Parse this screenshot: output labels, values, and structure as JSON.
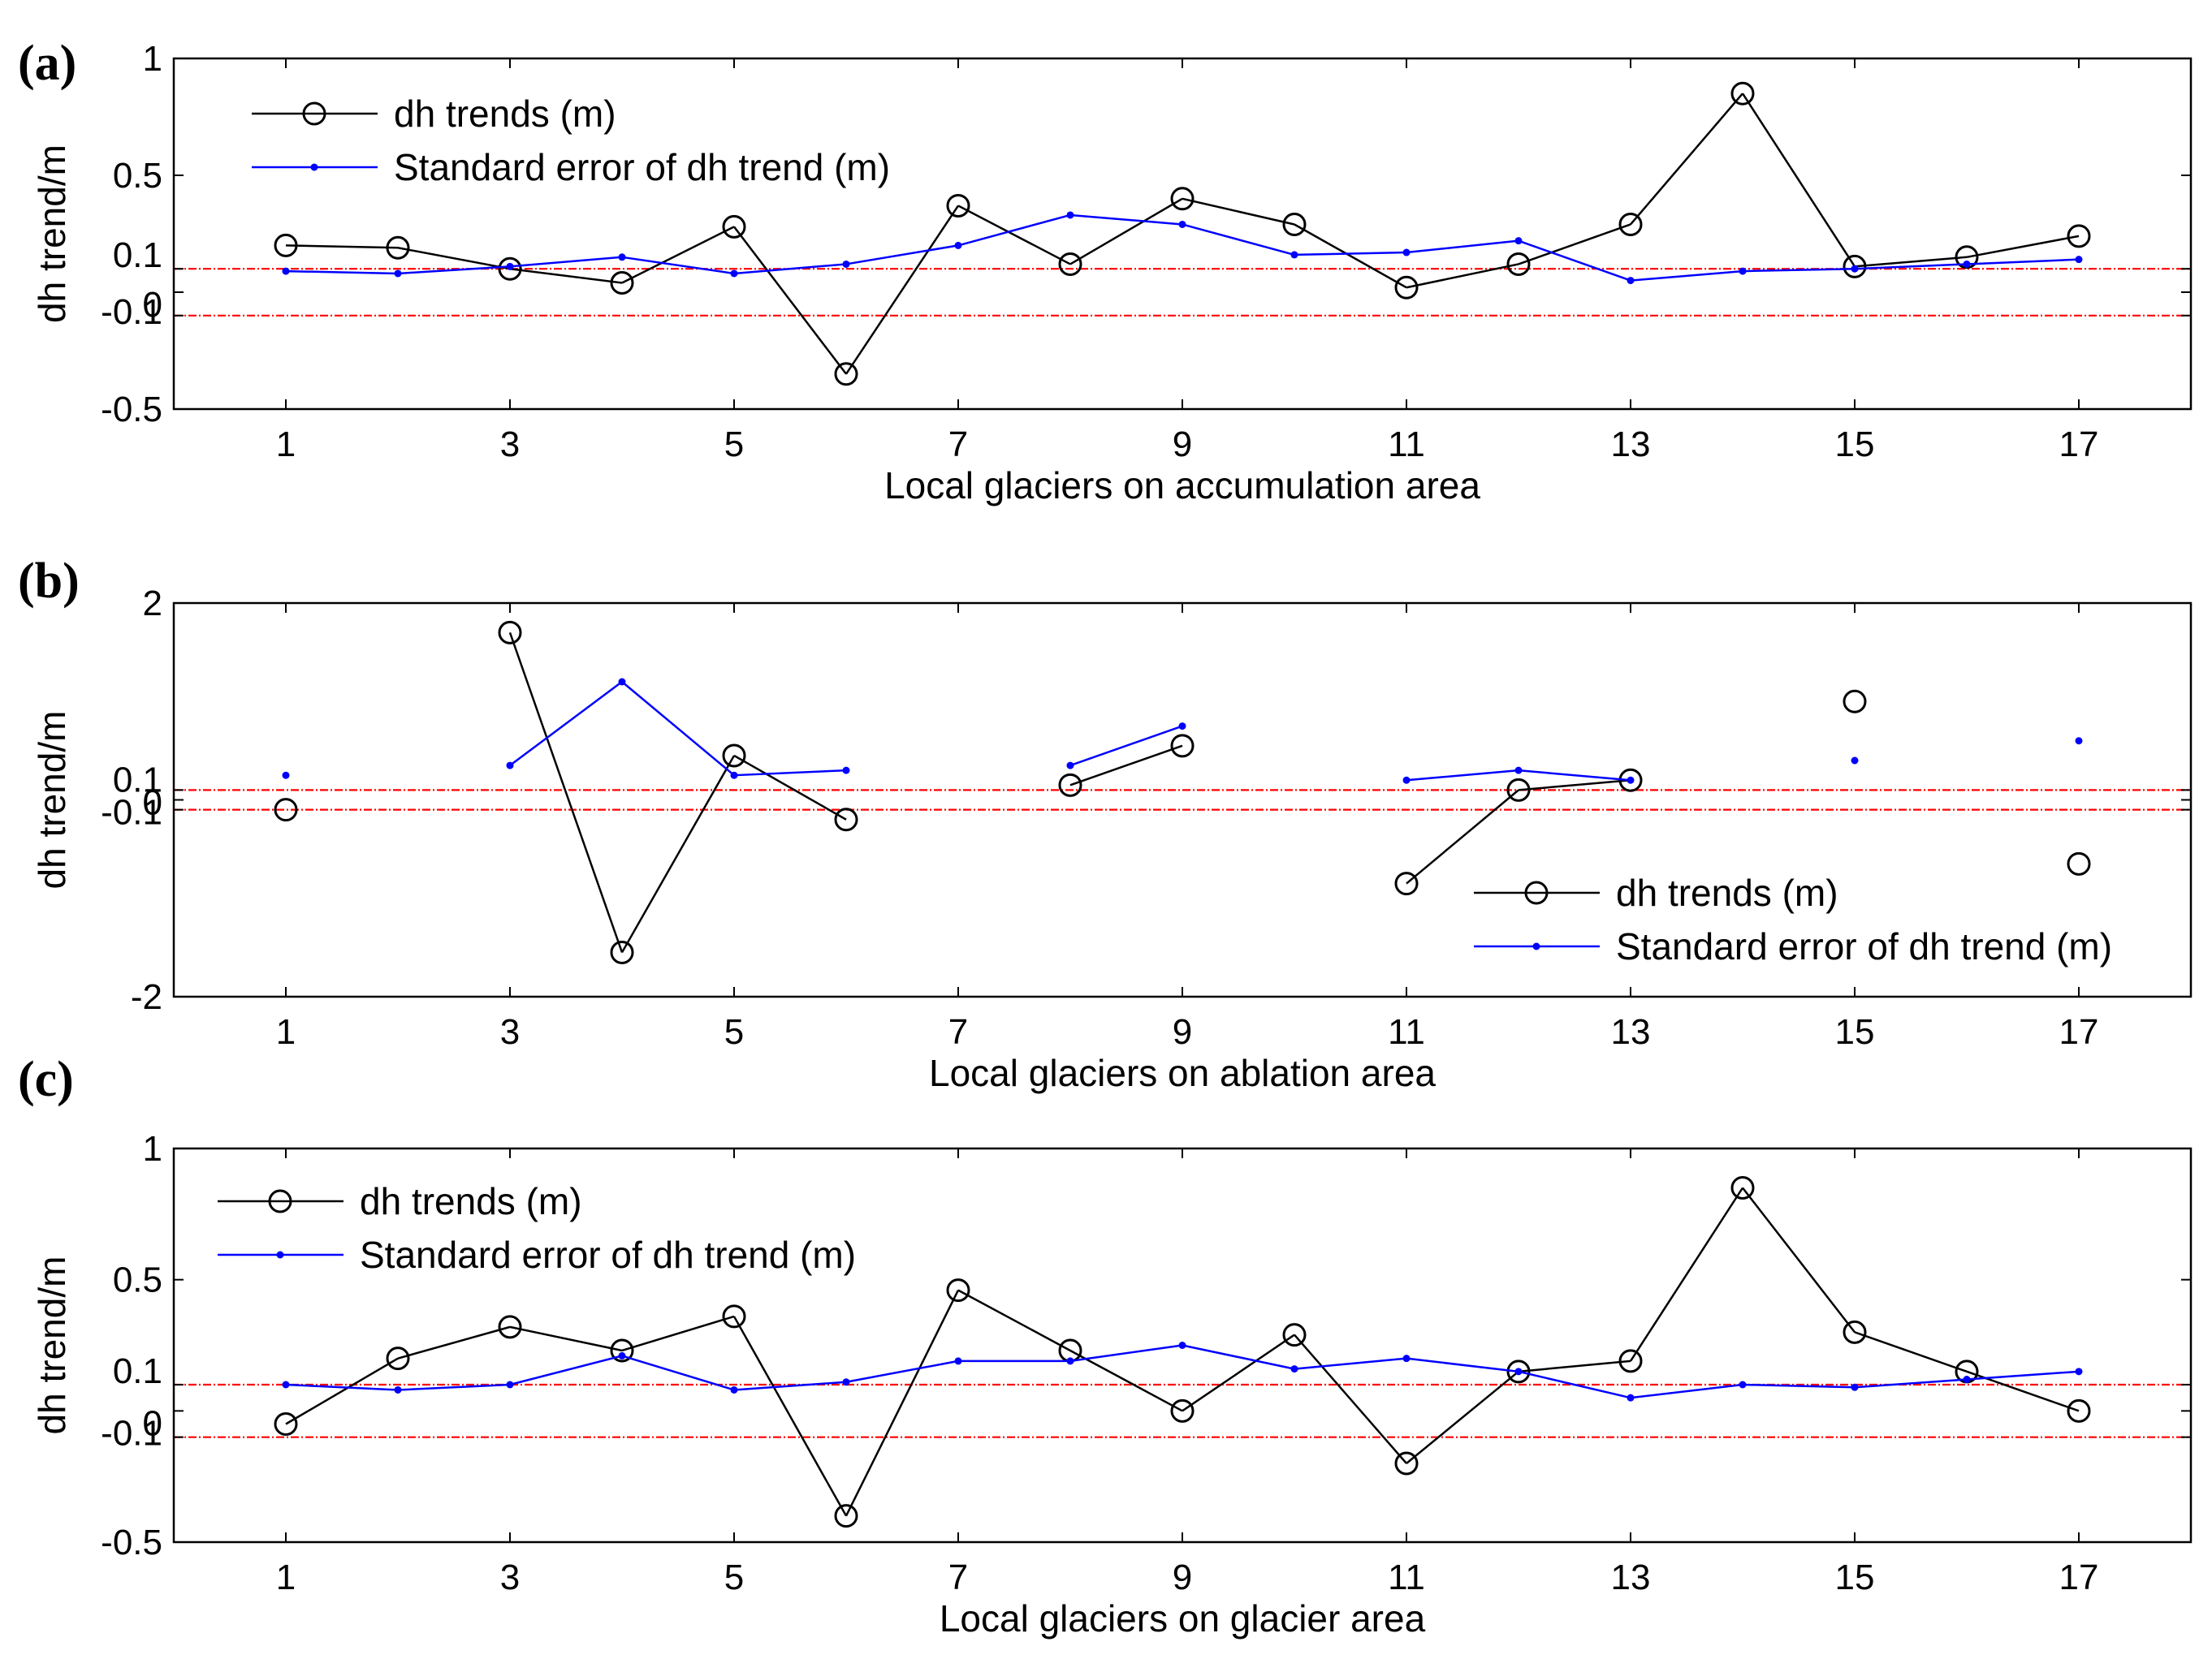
{
  "colors": {
    "dh_series": "#000000",
    "se_series": "#0000ff",
    "reference_lines": "#ff0000",
    "axes": "#000000",
    "background": "#ffffff"
  },
  "chart_data": [
    {
      "panel": "(a)",
      "type": "line",
      "xlabel": "Local glaciers on accumulation area",
      "ylabel": "dh trend/m",
      "x": [
        1,
        2,
        3,
        4,
        5,
        6,
        7,
        8,
        9,
        10,
        11,
        12,
        13,
        14,
        15,
        16,
        17
      ],
      "xlim": [
        0,
        18
      ],
      "x_ticks": [
        1,
        3,
        5,
        7,
        9,
        11,
        13,
        15,
        17
      ],
      "ylim": [
        -0.5,
        1
      ],
      "y_ticks": [
        {
          "value": -0.5,
          "label": "-0.5"
        },
        {
          "value": -0.1,
          "label": "-0.1"
        },
        {
          "value": 0,
          "label": "0"
        },
        {
          "value": 0.1,
          "label": "0.1"
        },
        {
          "value": 0.5,
          "label": "0.5"
        },
        {
          "value": 1,
          "label": "1"
        }
      ],
      "reference_lines": [
        0.1,
        -0.1
      ],
      "legend_position": "top-left",
      "series": [
        {
          "name": "dh trends (m)",
          "style": "circle-line",
          "values": [
            0.2,
            0.19,
            0.1,
            0.04,
            0.28,
            -0.35,
            0.37,
            0.12,
            0.4,
            0.29,
            0.02,
            0.12,
            0.29,
            0.85,
            0.11,
            0.15,
            0.24
          ]
        },
        {
          "name": "Standard error of dh trend (m)",
          "style": "dot-line",
          "values": [
            0.09,
            0.08,
            0.11,
            0.15,
            0.08,
            0.12,
            0.2,
            0.33,
            0.29,
            0.16,
            0.17,
            0.22,
            0.05,
            0.09,
            0.1,
            0.12,
            0.14
          ]
        }
      ]
    },
    {
      "panel": "(b)",
      "type": "line",
      "xlabel": "Local glaciers on ablation area",
      "ylabel": "dh trend/m",
      "x": [
        1,
        2,
        3,
        4,
        5,
        6,
        7,
        8,
        9,
        10,
        11,
        12,
        13,
        14,
        15,
        16,
        17
      ],
      "xlim": [
        0,
        18
      ],
      "x_ticks": [
        1,
        3,
        5,
        7,
        9,
        11,
        13,
        15,
        17
      ],
      "ylim": [
        -2,
        2
      ],
      "y_ticks": [
        {
          "value": -2,
          "label": "-2"
        },
        {
          "value": -0.1,
          "label": "-0.1"
        },
        {
          "value": 0,
          "label": "0"
        },
        {
          "value": 0.1,
          "label": "0.1"
        },
        {
          "value": 2,
          "label": "2"
        }
      ],
      "reference_lines": [
        0.1,
        -0.1
      ],
      "legend_position": "bottom-right",
      "series": [
        {
          "name": "dh trends (m)",
          "style": "circle-line",
          "values": [
            -0.1,
            null,
            1.7,
            -1.55,
            0.45,
            -0.2,
            null,
            0.15,
            0.55,
            null,
            -0.85,
            0.1,
            0.2,
            null,
            1.0,
            null,
            -0.65
          ]
        },
        {
          "name": "Standard error of dh trend (m)",
          "style": "dot-line",
          "values": [
            0.25,
            null,
            0.35,
            1.2,
            0.25,
            0.3,
            null,
            0.35,
            0.75,
            null,
            0.2,
            0.3,
            0.2,
            null,
            0.4,
            null,
            0.6
          ]
        }
      ]
    },
    {
      "panel": "(c)",
      "type": "line",
      "xlabel": "Local glaciers on glacier area",
      "ylabel": "dh trend/m",
      "x": [
        1,
        2,
        3,
        4,
        5,
        6,
        7,
        8,
        9,
        10,
        11,
        12,
        13,
        14,
        15,
        16,
        17
      ],
      "xlim": [
        0,
        18
      ],
      "x_ticks": [
        1,
        3,
        5,
        7,
        9,
        11,
        13,
        15,
        17
      ],
      "ylim": [
        -0.5,
        1
      ],
      "y_ticks": [
        {
          "value": -0.5,
          "label": "-0.5"
        },
        {
          "value": -0.1,
          "label": "-0.1"
        },
        {
          "value": 0,
          "label": "0"
        },
        {
          "value": 0.1,
          "label": "0.1"
        },
        {
          "value": 0.5,
          "label": "0.5"
        },
        {
          "value": 1,
          "label": "1"
        }
      ],
      "reference_lines": [
        0.1,
        -0.1
      ],
      "legend_position": "top-left",
      "series": [
        {
          "name": "dh trends (m)",
          "style": "circle-line",
          "values": [
            -0.05,
            0.2,
            0.32,
            0.23,
            0.36,
            -0.4,
            0.46,
            0.23,
            0.0,
            0.29,
            -0.2,
            0.15,
            0.19,
            0.85,
            0.3,
            0.15,
            0.0
          ]
        },
        {
          "name": "Standard error of dh trend (m)",
          "style": "dot-line",
          "values": [
            0.1,
            0.08,
            0.1,
            0.21,
            0.08,
            0.11,
            0.19,
            0.19,
            0.25,
            0.16,
            0.2,
            0.15,
            0.05,
            0.1,
            0.09,
            0.12,
            0.15
          ]
        }
      ]
    }
  ]
}
